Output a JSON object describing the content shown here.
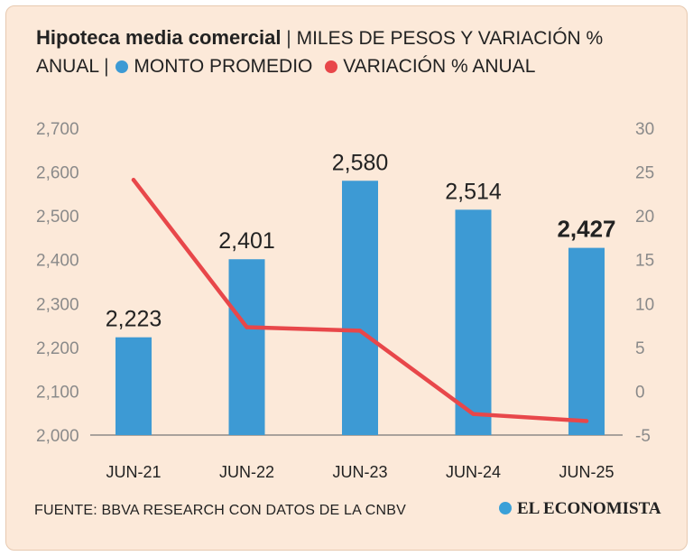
{
  "header": {
    "title": "Hipoteca media comercial",
    "separator": "|",
    "subtitle_1": "MILES DE PESOS Y VARIACIÓN %",
    "subtitle_2": "ANUAL",
    "legend_bar": "MONTO PROMEDIO",
    "legend_line": "VARIACIÓN % ANUAL"
  },
  "colors": {
    "bar": "#3d9ad4",
    "line": "#e8474a",
    "background": "#fce9d9",
    "text": "#222222",
    "axis": "#777777"
  },
  "chart_data": {
    "type": "bar",
    "title": "Hipoteca media comercial",
    "categories": [
      "JUN-21",
      "JUN-22",
      "JUN-23",
      "JUN-24",
      "JUN-25"
    ],
    "series": [
      {
        "name": "MONTO PROMEDIO",
        "type": "bar",
        "axis": "left",
        "values": [
          2223,
          2401,
          2580,
          2514,
          2427
        ]
      },
      {
        "name": "VARIACIÓN % ANUAL",
        "type": "line",
        "axis": "right",
        "values": [
          24.1,
          7.3,
          6.9,
          -2.6,
          -3.4
        ]
      }
    ],
    "data_labels": [
      "2,223",
      "2,401",
      "2,580",
      "2,514",
      "2,427"
    ],
    "y_left": {
      "ylim": [
        2000,
        2700
      ],
      "ticks": [
        "2,000",
        "2,100",
        "2,200",
        "2,300",
        "2,400",
        "2,500",
        "2,600",
        "2,700"
      ]
    },
    "y_right": {
      "ylim": [
        -5,
        30
      ],
      "ticks": [
        "-5",
        "0",
        "5",
        "10",
        "15",
        "20",
        "25",
        "30"
      ]
    },
    "xlabel": "",
    "ylabel": "",
    "grid": false,
    "legend": "top-left"
  },
  "footer": {
    "source": "FUENTE: BBVA RESEARCH CON DATOS DE LA CNBV",
    "brand": "EL ECONOMISTA"
  }
}
